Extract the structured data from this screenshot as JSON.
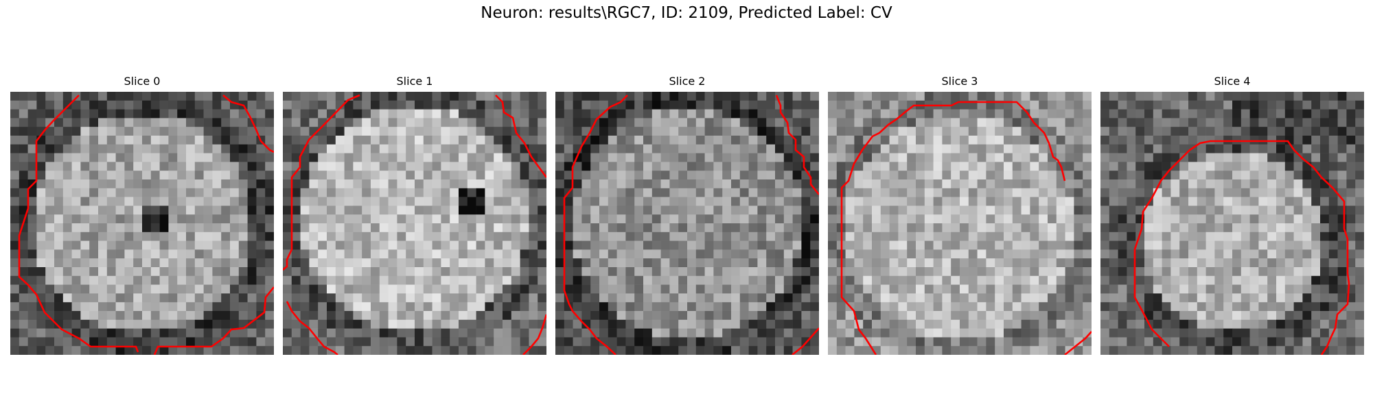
{
  "figure": {
    "title": "Neuron: results\\RGC7, ID: 2109, Predicted Label: CV"
  },
  "panels": [
    {
      "title": "Slice 0"
    },
    {
      "title": "Slice 1"
    },
    {
      "title": "Slice 2"
    },
    {
      "title": "Slice 3"
    },
    {
      "title": "Slice 4"
    }
  ],
  "colors": {
    "contour": "#ff0000",
    "background": "#ffffff"
  },
  "image": {
    "grid": 30,
    "colormap": "grayscale"
  }
}
